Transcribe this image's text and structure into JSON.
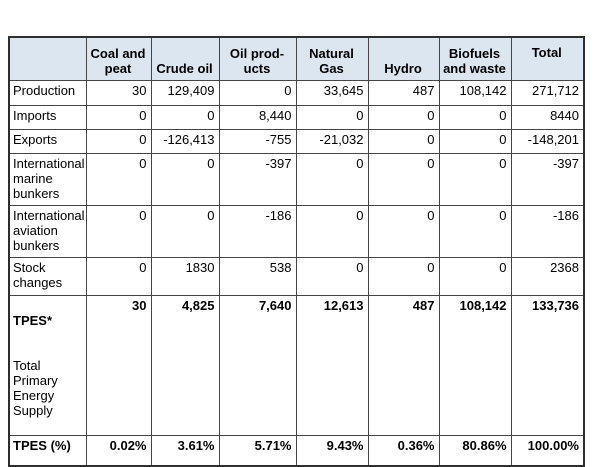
{
  "colors": {
    "header_fill": "#dce6f1",
    "grid_border": "#454545",
    "outer_border": "#2e2e2e",
    "text": "#000000",
    "background": "#ffffff"
  },
  "table": {
    "header": {
      "corner": "",
      "cols": [
        "Coal and\npeat",
        "Crude oil",
        "Oil prod-\nucts",
        "Natural Gas",
        "Hydro",
        "Biofuels\nand waste",
        "Total"
      ]
    },
    "rows": [
      {
        "label": "Production",
        "values": [
          "30",
          "129,409",
          "0",
          "33,645",
          "487",
          "108,142",
          "271,712"
        ]
      },
      {
        "label": "Imports",
        "values": [
          "0",
          "0",
          "8,440",
          "0",
          "0",
          "0",
          "8440"
        ]
      },
      {
        "label": "Exports",
        "values": [
          "0",
          "-126,413",
          "-755",
          "-21,032",
          "0",
          "0",
          "-148,201"
        ]
      },
      {
        "label": "International\nmarine\nbunkers",
        "values": [
          "0",
          "0",
          "-397",
          "0",
          "0",
          "0",
          "-397"
        ]
      },
      {
        "label": "International\naviation\nbunkers",
        "values": [
          "0",
          "0",
          "-186",
          "0",
          "0",
          "0",
          "-186"
        ]
      },
      {
        "label": "Stock\nchanges",
        "values": [
          "0",
          "1830",
          "538",
          "0",
          "0",
          "0",
          "2368"
        ]
      },
      {
        "label": "TPES*",
        "sublabel": "Total Primary\nEnergy\nSupply",
        "values": [
          "30",
          "4,825",
          "7,640",
          "12,613",
          "487",
          "108,142",
          "133,736"
        ]
      },
      {
        "label": "TPES (%)",
        "values": [
          "0.02%",
          "3.61%",
          "5.71%",
          "9.43%",
          "0.36%",
          "80.86%",
          "100.00%"
        ]
      }
    ]
  }
}
